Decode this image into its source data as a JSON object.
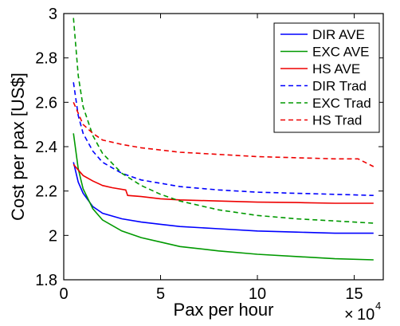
{
  "chart_data": {
    "type": "line",
    "title": "",
    "xlabel": "Pax per hour",
    "ylabel": "Cost per pax [US$]",
    "x_multiplier": "10",
    "x_multiplier_exponent": "4",
    "xlim": [
      0,
      16.5
    ],
    "ylim": [
      1.8,
      3.0
    ],
    "xticks": [
      0,
      5,
      10,
      15
    ],
    "yticks": [
      1.8,
      2.0,
      2.2,
      2.4,
      2.6,
      2.8,
      3.0
    ],
    "xtick_labels": [
      "0",
      "5",
      "10",
      "15"
    ],
    "ytick_labels": [
      "1.8",
      "2",
      "2.2",
      "2.4",
      "2.6",
      "2.8",
      "3"
    ],
    "grid": false,
    "legend_position": "top-right",
    "series": [
      {
        "name": "DIR AVE",
        "color": "#0000ff",
        "dash": "solid",
        "x": [
          0.5,
          0.75,
          1,
          1.5,
          2,
          3,
          4,
          5,
          6,
          8,
          10,
          12,
          14,
          16
        ],
        "y": [
          2.33,
          2.24,
          2.19,
          2.13,
          2.1,
          2.075,
          2.06,
          2.05,
          2.04,
          2.03,
          2.02,
          2.015,
          2.01,
          2.01
        ]
      },
      {
        "name": "EXC AVE",
        "color": "#009900",
        "dash": "solid",
        "x": [
          0.5,
          0.75,
          1,
          1.5,
          2,
          3,
          4,
          5,
          6,
          8,
          10,
          12,
          14,
          16
        ],
        "y": [
          2.46,
          2.3,
          2.21,
          2.12,
          2.07,
          2.02,
          1.99,
          1.97,
          1.95,
          1.93,
          1.915,
          1.905,
          1.895,
          1.89
        ]
      },
      {
        "name": "HS AVE",
        "color": "#ee0000",
        "dash": "solid",
        "x": [
          0.5,
          1,
          1.5,
          2,
          2.5,
          3.2,
          3.3,
          4,
          5,
          6,
          8,
          10,
          12,
          14,
          16
        ],
        "y": [
          2.32,
          2.27,
          2.245,
          2.225,
          2.215,
          2.205,
          2.18,
          2.175,
          2.165,
          2.16,
          2.155,
          2.15,
          2.148,
          2.145,
          2.145
        ]
      },
      {
        "name": "DIR Trad",
        "color": "#0000ff",
        "dash": "dashed",
        "x": [
          0.5,
          0.75,
          1,
          1.5,
          2,
          3,
          4,
          5,
          6,
          8,
          10,
          12,
          14,
          16
        ],
        "y": [
          2.69,
          2.54,
          2.46,
          2.38,
          2.33,
          2.28,
          2.25,
          2.235,
          2.22,
          2.205,
          2.195,
          2.19,
          2.185,
          2.18
        ]
      },
      {
        "name": "EXC Trad",
        "color": "#009900",
        "dash": "dashed",
        "x": [
          0.5,
          0.75,
          1,
          1.5,
          2,
          3,
          4,
          5,
          6,
          8,
          10,
          12,
          14,
          16
        ],
        "y": [
          2.98,
          2.72,
          2.58,
          2.45,
          2.37,
          2.28,
          2.225,
          2.185,
          2.155,
          2.115,
          2.09,
          2.075,
          2.065,
          2.055
        ]
      },
      {
        "name": "HS Trad",
        "color": "#ee0000",
        "dash": "dashed",
        "x": [
          0.5,
          1,
          1.5,
          2,
          3,
          4,
          5,
          6,
          8,
          10,
          12,
          14,
          15.2,
          16
        ],
        "y": [
          2.6,
          2.5,
          2.46,
          2.43,
          2.41,
          2.395,
          2.385,
          2.375,
          2.365,
          2.355,
          2.35,
          2.345,
          2.345,
          2.31
        ]
      }
    ]
  }
}
